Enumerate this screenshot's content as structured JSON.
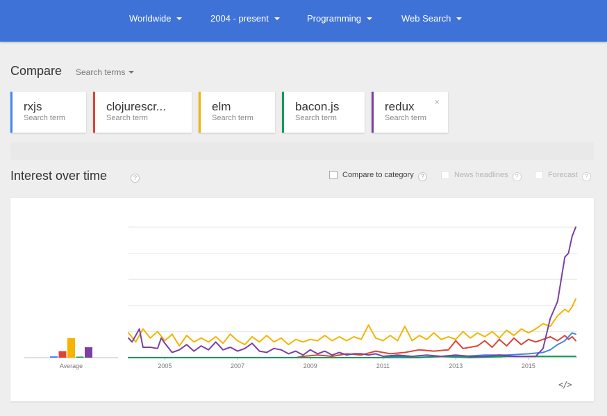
{
  "filters": {
    "region": "Worldwide",
    "time_range": "2004 - present",
    "category": "Programming",
    "search_type": "Web Search"
  },
  "compare": {
    "title": "Compare",
    "search_terms_dropdown": "Search terms"
  },
  "terms": [
    {
      "name": "rxjs",
      "type": "Search term",
      "color": "#4285f4"
    },
    {
      "name": "clojurescr...",
      "type": "Search term",
      "color": "#db4437"
    },
    {
      "name": "elm",
      "type": "Search term",
      "color": "#f4b400"
    },
    {
      "name": "bacon.js",
      "type": "Search term",
      "color": "#0f9d58"
    },
    {
      "name": "redux",
      "type": "Search term",
      "color": "#7b3fa6",
      "close_icon": "×"
    }
  ],
  "interest_over_time": {
    "title": "Interest over time",
    "help_icon": "?",
    "options": [
      {
        "label": "Compare to category",
        "checked": false,
        "enabled": true
      },
      {
        "label": "News headlines",
        "checked": false,
        "enabled": false
      },
      {
        "label": "Forecast",
        "checked": false,
        "enabled": false
      }
    ],
    "embed_icon": "</>"
  },
  "chart_data": {
    "type": "line",
    "x_tick_labels": [
      "2005",
      "2007",
      "2009",
      "2011",
      "2013",
      "2015"
    ],
    "average_label": "Average",
    "ylim": [
      0,
      100
    ],
    "grid": true,
    "x_start": 2004.0,
    "x_end": 2016.3,
    "average_bars": [
      {
        "term": "rxjs",
        "value": 1,
        "color": "#4285f4"
      },
      {
        "term": "clojurescr...",
        "value": 5,
        "color": "#db4437"
      },
      {
        "term": "elm",
        "value": 15,
        "color": "#f4b400"
      },
      {
        "term": "bacon.js",
        "value": 0,
        "color": "#0f9d58"
      },
      {
        "term": "redux",
        "value": 8,
        "color": "#7b3fa6"
      }
    ],
    "series": [
      {
        "color": "#f4b400",
        "points": [
          [
            2004.0,
            19
          ],
          [
            2004.2,
            12
          ],
          [
            2004.4,
            22
          ],
          [
            2004.6,
            15
          ],
          [
            2004.8,
            20
          ],
          [
            2005.0,
            13
          ],
          [
            2005.2,
            18
          ],
          [
            2005.4,
            9
          ],
          [
            2005.6,
            17
          ],
          [
            2005.8,
            12
          ],
          [
            2006.0,
            15
          ],
          [
            2006.2,
            12
          ],
          [
            2006.4,
            16
          ],
          [
            2006.6,
            11
          ],
          [
            2006.8,
            18
          ],
          [
            2007.0,
            13
          ],
          [
            2007.2,
            10
          ],
          [
            2007.4,
            16
          ],
          [
            2007.6,
            12
          ],
          [
            2007.8,
            17
          ],
          [
            2008.0,
            12
          ],
          [
            2008.2,
            15
          ],
          [
            2008.4,
            10
          ],
          [
            2008.6,
            14
          ],
          [
            2008.8,
            12
          ],
          [
            2009.0,
            14
          ],
          [
            2009.2,
            13
          ],
          [
            2009.4,
            17
          ],
          [
            2009.6,
            13
          ],
          [
            2009.8,
            16
          ],
          [
            2010.0,
            13
          ],
          [
            2010.2,
            16
          ],
          [
            2010.4,
            14
          ],
          [
            2010.6,
            25
          ],
          [
            2010.8,
            15
          ],
          [
            2011.0,
            13
          ],
          [
            2011.2,
            17
          ],
          [
            2011.4,
            13
          ],
          [
            2011.6,
            24
          ],
          [
            2011.8,
            13
          ],
          [
            2012.0,
            17
          ],
          [
            2012.2,
            14
          ],
          [
            2012.4,
            19
          ],
          [
            2012.6,
            14
          ],
          [
            2012.8,
            16
          ],
          [
            2013.0,
            14
          ],
          [
            2013.2,
            20
          ],
          [
            2013.4,
            15
          ],
          [
            2013.6,
            19
          ],
          [
            2013.8,
            16
          ],
          [
            2014.0,
            20
          ],
          [
            2014.2,
            15
          ],
          [
            2014.4,
            21
          ],
          [
            2014.6,
            17
          ],
          [
            2014.8,
            22
          ],
          [
            2015.0,
            19
          ],
          [
            2015.2,
            22
          ],
          [
            2015.4,
            26
          ],
          [
            2015.6,
            24
          ],
          [
            2015.8,
            32
          ],
          [
            2016.0,
            37
          ],
          [
            2016.1,
            35
          ],
          [
            2016.2,
            39
          ],
          [
            2016.3,
            45
          ]
        ]
      },
      {
        "color": "#db4437",
        "points": [
          [
            2004.0,
            0
          ],
          [
            2008.6,
            0
          ],
          [
            2008.8,
            1
          ],
          [
            2009.2,
            2
          ],
          [
            2009.6,
            1
          ],
          [
            2010.0,
            3
          ],
          [
            2010.4,
            2
          ],
          [
            2010.8,
            5
          ],
          [
            2011.2,
            3
          ],
          [
            2011.6,
            4
          ],
          [
            2012.0,
            6
          ],
          [
            2012.4,
            5
          ],
          [
            2012.8,
            6
          ],
          [
            2013.0,
            13
          ],
          [
            2013.2,
            7
          ],
          [
            2013.6,
            9
          ],
          [
            2013.8,
            13
          ],
          [
            2014.0,
            8
          ],
          [
            2014.2,
            14
          ],
          [
            2014.4,
            9
          ],
          [
            2014.6,
            15
          ],
          [
            2014.8,
            10
          ],
          [
            2015.0,
            14
          ],
          [
            2015.2,
            12
          ],
          [
            2015.4,
            14
          ],
          [
            2015.6,
            16
          ],
          [
            2015.8,
            13
          ],
          [
            2016.0,
            17
          ],
          [
            2016.1,
            14
          ],
          [
            2016.2,
            16
          ],
          [
            2016.3,
            13
          ]
        ]
      },
      {
        "color": "#4285f4",
        "points": [
          [
            2004.0,
            0
          ],
          [
            2012.0,
            0
          ],
          [
            2012.6,
            1
          ],
          [
            2013.2,
            1
          ],
          [
            2013.8,
            2
          ],
          [
            2014.4,
            2
          ],
          [
            2015.0,
            3
          ],
          [
            2015.4,
            4
          ],
          [
            2015.6,
            6
          ],
          [
            2015.8,
            10
          ],
          [
            2016.0,
            13
          ],
          [
            2016.1,
            16
          ],
          [
            2016.2,
            19
          ],
          [
            2016.3,
            18
          ]
        ]
      },
      {
        "color": "#0f9d58",
        "points": [
          [
            2004.0,
            0
          ],
          [
            2011.0,
            0
          ],
          [
            2011.4,
            1
          ],
          [
            2011.8,
            0
          ],
          [
            2012.6,
            1
          ],
          [
            2013.4,
            0
          ],
          [
            2014.4,
            1
          ],
          [
            2015.4,
            1
          ],
          [
            2016.3,
            1
          ]
        ]
      },
      {
        "color": "#7b3fa6",
        "points": [
          [
            2004.0,
            15
          ],
          [
            2004.1,
            12
          ],
          [
            2004.3,
            22
          ],
          [
            2004.4,
            8
          ],
          [
            2004.6,
            8
          ],
          [
            2004.8,
            7
          ],
          [
            2004.9,
            15
          ],
          [
            2005.0,
            11
          ],
          [
            2005.2,
            4
          ],
          [
            2005.4,
            6
          ],
          [
            2005.6,
            10
          ],
          [
            2005.8,
            5
          ],
          [
            2006.0,
            9
          ],
          [
            2006.2,
            6
          ],
          [
            2006.4,
            12
          ],
          [
            2006.6,
            6
          ],
          [
            2006.8,
            8
          ],
          [
            2007.0,
            5
          ],
          [
            2007.2,
            7
          ],
          [
            2007.4,
            11
          ],
          [
            2007.6,
            5
          ],
          [
            2007.8,
            4
          ],
          [
            2008.0,
            7
          ],
          [
            2008.2,
            6
          ],
          [
            2008.4,
            3
          ],
          [
            2008.6,
            5
          ],
          [
            2008.8,
            2
          ],
          [
            2009.0,
            6
          ],
          [
            2009.2,
            3
          ],
          [
            2009.4,
            5
          ],
          [
            2009.6,
            2
          ],
          [
            2009.8,
            4
          ],
          [
            2010.0,
            2
          ],
          [
            2010.2,
            3
          ],
          [
            2010.4,
            3
          ],
          [
            2010.6,
            2
          ],
          [
            2010.8,
            3
          ],
          [
            2011.0,
            1
          ],
          [
            2011.4,
            2
          ],
          [
            2011.8,
            1
          ],
          [
            2012.2,
            2
          ],
          [
            2012.6,
            1
          ],
          [
            2013.0,
            2
          ],
          [
            2013.4,
            1
          ],
          [
            2013.8,
            1
          ],
          [
            2014.2,
            2
          ],
          [
            2014.6,
            1
          ],
          [
            2015.0,
            1
          ],
          [
            2015.2,
            1
          ],
          [
            2015.4,
            7
          ],
          [
            2015.6,
            30
          ],
          [
            2015.8,
            43
          ],
          [
            2016.0,
            77
          ],
          [
            2016.1,
            80
          ],
          [
            2016.2,
            93
          ],
          [
            2016.3,
            100
          ]
        ]
      }
    ]
  }
}
